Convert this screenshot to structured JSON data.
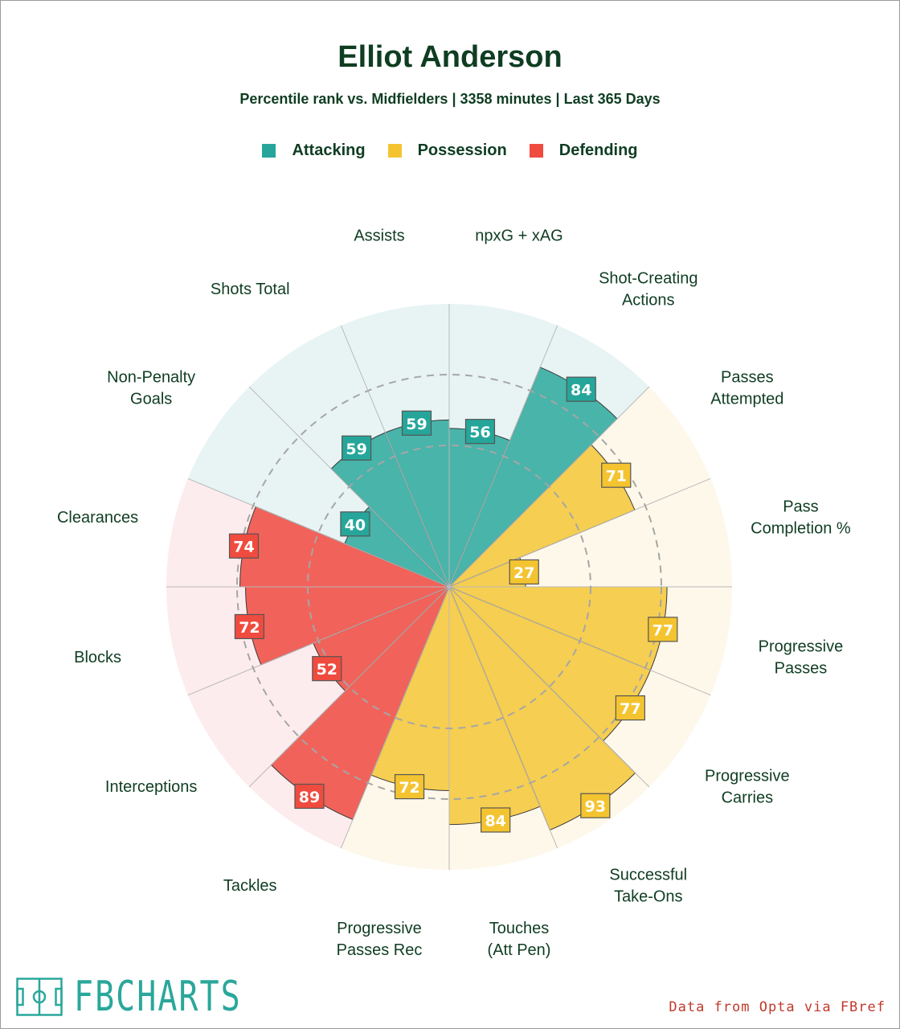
{
  "title": "Elliot Anderson",
  "subtitle": "Percentile rank vs. Midfielders | 3358 minutes | Last 365 Days",
  "legend": [
    {
      "label": "Attacking",
      "color": "#26a69a"
    },
    {
      "label": "Possession",
      "color": "#f4c430"
    },
    {
      "label": "Defending",
      "color": "#ef4b3f"
    }
  ],
  "watermark": {
    "text": "FBCHARTS",
    "icon": "football-pitch-icon"
  },
  "source": "Data from Opta via FBref",
  "chart_data": {
    "type": "polar-bar",
    "title": "Elliot Anderson",
    "rlim": [
      0,
      100
    ],
    "reference_rings": [
      50,
      75
    ],
    "categories": [
      {
        "label": "npxG + xAG",
        "group": "Attacking",
        "value": 56
      },
      {
        "label": "Shot-Creating Actions",
        "group": "Attacking",
        "value": 84
      },
      {
        "label": "Passes Attempted",
        "group": "Possession",
        "value": 71
      },
      {
        "label": "Pass Completion %",
        "group": "Possession",
        "value": 27
      },
      {
        "label": "Progressive Passes",
        "group": "Possession",
        "value": 77
      },
      {
        "label": "Progressive Carries",
        "group": "Possession",
        "value": 77
      },
      {
        "label": "Successful Take-Ons",
        "group": "Possession",
        "value": 93
      },
      {
        "label": "Touches (Att Pen)",
        "group": "Possession",
        "value": 84
      },
      {
        "label": "Progressive Passes Rec",
        "group": "Possession",
        "value": 72
      },
      {
        "label": "Tackles",
        "group": "Defending",
        "value": 89
      },
      {
        "label": "Interceptions",
        "group": "Defending",
        "value": 52
      },
      {
        "label": "Blocks",
        "group": "Defending",
        "value": 72
      },
      {
        "label": "Clearances",
        "group": "Defending",
        "value": 74
      },
      {
        "label": "Non-Penalty Goals",
        "group": "Attacking",
        "value": 40
      },
      {
        "label": "Shots Total",
        "group": "Attacking",
        "value": 59
      },
      {
        "label": "Assists",
        "group": "Attacking",
        "value": 59
      }
    ],
    "group_colors": {
      "Attacking": {
        "fill": "#26a69a",
        "bg": "#e8f4f4",
        "label_fill": "#26a69a"
      },
      "Possession": {
        "fill": "#f4c430",
        "bg": "#fdf8ea",
        "label_fill": "#f4c430"
      },
      "Defending": {
        "fill": "#ef4b3f",
        "bg": "#fdecee",
        "label_fill": "#ef4b3f"
      }
    }
  }
}
